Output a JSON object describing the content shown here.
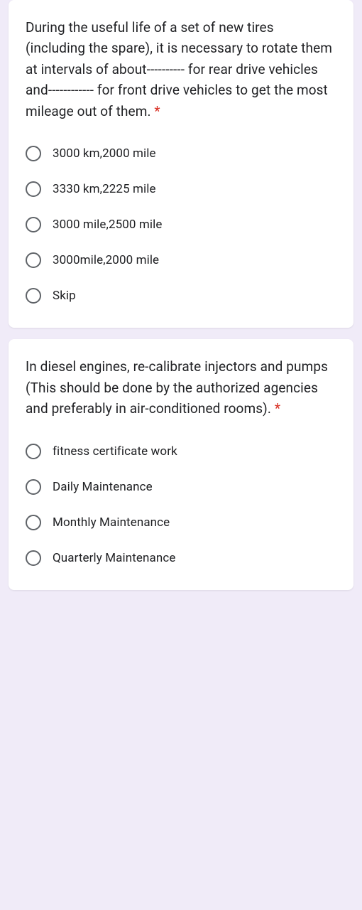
{
  "theme": {
    "background_color": "#f0ebf8",
    "card_background": "#ffffff",
    "text_color": "#202124",
    "radio_border_color": "#5f6368",
    "required_color": "#d93025",
    "question_fontsize": 19,
    "option_fontsize": 17
  },
  "questions": [
    {
      "text": "During the useful life of a set of new tires (including the spare), it is necessary to rotate them at intervals of about---------- for rear drive vehicles and------------ for front drive vehicles to get the most mileage out of them.",
      "required_mark": "*",
      "options": [
        "3000 km,2000 mile",
        "3330 km,2225 mile",
        "3000 mile,2500 mile",
        "3000mile,2000 mile",
        "Skip"
      ]
    },
    {
      "text": "In diesel engines, re-calibrate injectors and pumps (This should be done by the authorized agencies and preferably in air-conditioned rooms).",
      "required_mark": "*",
      "options": [
        "fitness certificate work",
        "Daily Maintenance",
        "Monthly Maintenance",
        "Quarterly Maintenance"
      ]
    }
  ]
}
